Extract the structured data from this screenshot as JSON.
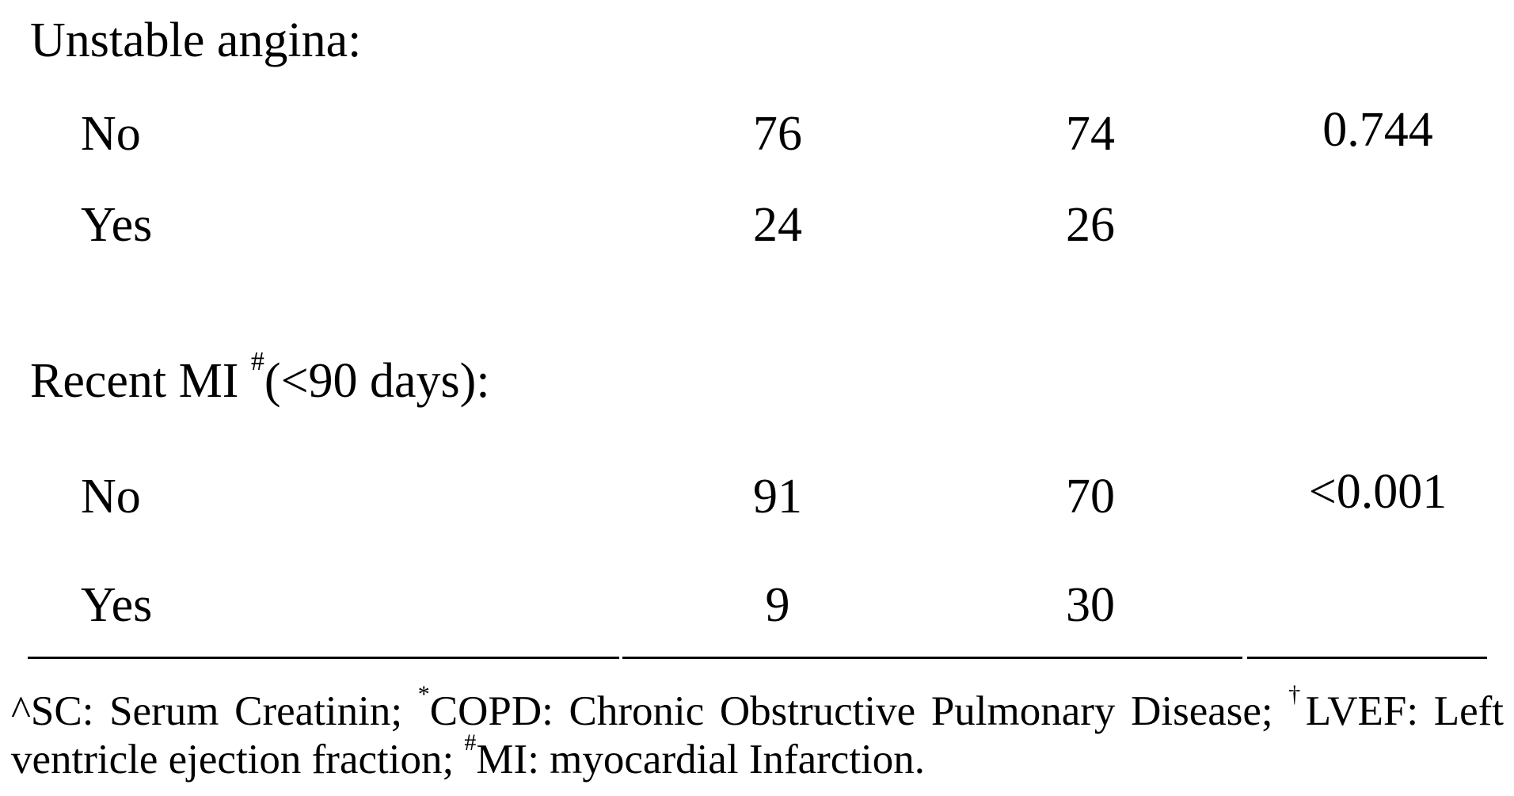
{
  "sections": [
    {
      "label": "Unstable angina:",
      "rows": [
        {
          "label": "No",
          "col1": "76",
          "col2": "74",
          "p": "0.744"
        },
        {
          "label": "Yes",
          "col1": "24",
          "col2": "26",
          "p": ""
        }
      ]
    },
    {
      "label_main": "Recent MI ",
      "label_sup": "#",
      "label_rest": "(<90 days):",
      "rows": [
        {
          "label": "No",
          "col1": "91",
          "col2": "70",
          "p": "<0.001"
        },
        {
          "label": "Yes",
          "col1": "9",
          "col2": "30",
          "p": ""
        }
      ]
    }
  ],
  "footnote": {
    "a": "^SC: Serum Creatinin; ",
    "b_sup": "*",
    "b": "COPD: Chronic Obstructive Pulmonary Disease; ",
    "c_sup": "†",
    "c": "LVEF: Left ventricle ejection fraction; ",
    "d_sup": "#",
    "d": "MI: myocardial Infarction."
  }
}
